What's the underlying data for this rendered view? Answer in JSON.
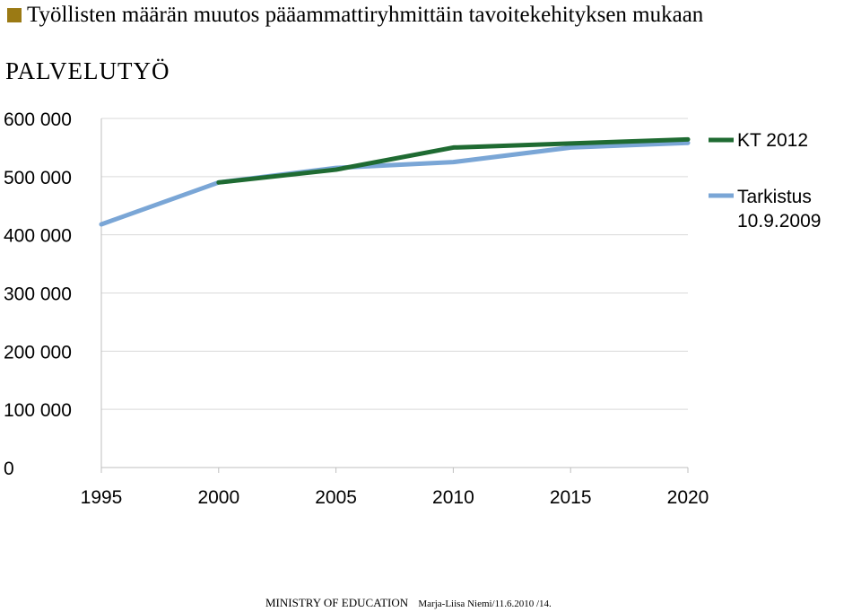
{
  "header": {
    "title": "Työllisten määrän muutos pääammattiryhmittäin tavoitekehityksen mukaan",
    "subtitle": "PALVELUTYÖ"
  },
  "footer": {
    "org": "MINISTRY OF EDUCATION",
    "note": "Marja-Liisa Niemi/11.6.2010 /14."
  },
  "colors": {
    "bullet": "#9b7a14",
    "series_kt2012": "#1f6b32",
    "series_tarkistus": "#7aa6d6",
    "grid": "#d9d9d9",
    "axis": "#bfbfbf"
  },
  "chart_data": {
    "type": "line",
    "title": "",
    "xlabel": "",
    "ylabel": "",
    "x": [
      1995,
      2000,
      2005,
      2010,
      2015,
      2020
    ],
    "xlim": [
      1995,
      2020
    ],
    "ylim": [
      0,
      600000
    ],
    "yticks": [
      0,
      100000,
      200000,
      300000,
      400000,
      500000,
      600000
    ],
    "ytick_labels": [
      "0",
      "100 000",
      "200 000",
      "300 000",
      "400 000",
      "500 000",
      "600 000"
    ],
    "xtick_labels": [
      "1995",
      "2000",
      "2005",
      "2010",
      "2015",
      "2020"
    ],
    "grid": true,
    "legend_position": "right",
    "series": [
      {
        "name": "KT 2012",
        "color": "#1f6b32",
        "values": [
          null,
          490000,
          512000,
          550000,
          557000,
          564000
        ]
      },
      {
        "name": "Tarkistus 10.9.2009",
        "color": "#7aa6d6",
        "values": [
          418000,
          490000,
          515000,
          525000,
          550000,
          558000
        ]
      }
    ]
  }
}
